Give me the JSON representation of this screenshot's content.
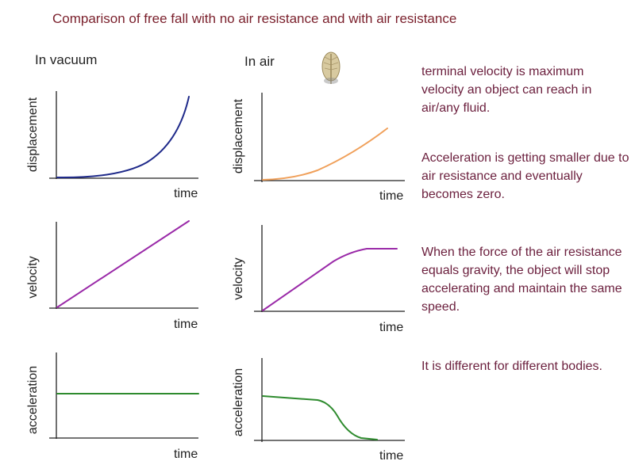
{
  "title": "Comparison of free fall with no air resistance and with air resistance",
  "columns": {
    "vacuum": "In vacuum",
    "air": "In air"
  },
  "axis_labels": {
    "time": "time",
    "displacement": "displacement",
    "velocity": "velocity",
    "acceleration": "acceleration"
  },
  "icons": {
    "feather": "feather-icon"
  },
  "colors": {
    "title": "#7a1f2b",
    "notes": "#6b1f3d",
    "vacuum_displacement": "#1f2a8a",
    "air_displacement": "#f0a05a",
    "velocity": "#9a2aa8",
    "acceleration": "#2e8b2e"
  },
  "notes": [
    "terminal velocity is maximum velocity an object can reach in air/any fluid.",
    "Acceleration is getting smaller due to air resistance and eventually becomes zero.",
    "When the force of the air resistance equals gravity, the object will stop accelerating and maintain the same speed.",
    "It is different for different bodies."
  ]
}
